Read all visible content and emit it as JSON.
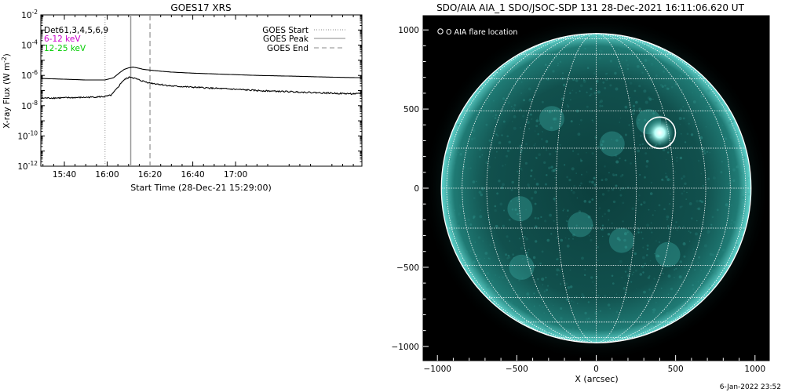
{
  "chart_data": [
    {
      "type": "line",
      "title": "GOES17 XRS",
      "xlabel": "Start Time (28-Dec-21 15:29:00)",
      "ylabel": "X-ray Flux (W m",
      "ylabel_sup": "-2",
      "ylabel_end": ")",
      "y_scale": "log",
      "ylim_exp": [
        -12,
        -2
      ],
      "xlim": [
        "15:29",
        "17:59"
      ],
      "x_ticks": [
        "15:40",
        "16:00",
        "16:20",
        "16:40",
        "17:00"
      ],
      "y_ticks": [
        {
          "base": "10",
          "exp": "-2"
        },
        {
          "base": "10",
          "exp": "-4"
        },
        {
          "base": "10",
          "exp": "-6"
        },
        {
          "base": "10",
          "exp": "-8"
        },
        {
          "base": "10",
          "exp": "-10"
        },
        {
          "base": "10",
          "exp": "-12"
        }
      ],
      "legend_left": [
        {
          "label": "Det61,3,4,5,6,9",
          "color": "#000000"
        },
        {
          "label": "6-12 keV",
          "color": "#cc00cc"
        },
        {
          "label": "12-25 keV",
          "color": "#00cc00"
        }
      ],
      "legend_right": [
        {
          "label": "GOES Start",
          "style": "dotted"
        },
        {
          "label": "GOES Peak",
          "style": "solid"
        },
        {
          "label": "GOES End",
          "style": "dashed"
        }
      ],
      "events": {
        "start": "15:59",
        "peak": "16:11",
        "end": "16:20"
      },
      "series": [
        {
          "channel": "long",
          "color": "#000000",
          "x": [
            "15:29",
            "15:40",
            "15:50",
            "15:59",
            "16:03",
            "16:06",
            "16:08",
            "16:10",
            "16:12",
            "16:14",
            "16:17",
            "16:20",
            "16:25",
            "16:30",
            "16:40",
            "16:50",
            "17:00",
            "17:10",
            "17:20",
            "17:30",
            "17:40",
            "17:50",
            "17:59"
          ],
          "log_flux": [
            -6.2,
            -6.25,
            -6.3,
            -6.3,
            -6.15,
            -5.8,
            -5.6,
            -5.5,
            -5.45,
            -5.5,
            -5.6,
            -5.65,
            -5.72,
            -5.78,
            -5.85,
            -5.9,
            -5.95,
            -6.0,
            -6.03,
            -6.06,
            -6.1,
            -6.13,
            -6.15
          ]
        },
        {
          "channel": "short",
          "color": "#000000",
          "x": [
            "15:29",
            "15:40",
            "15:50",
            "15:59",
            "16:02",
            "16:05",
            "16:07",
            "16:09",
            "16:11",
            "16:13",
            "16:16",
            "16:20",
            "16:25",
            "16:30",
            "16:40",
            "16:50",
            "17:00",
            "17:10",
            "17:20",
            "17:30",
            "17:40",
            "17:50",
            "17:59"
          ],
          "log_flux": [
            -7.5,
            -7.48,
            -7.45,
            -7.4,
            -7.3,
            -6.8,
            -6.4,
            -6.2,
            -6.1,
            -6.2,
            -6.35,
            -6.5,
            -6.6,
            -6.7,
            -6.78,
            -6.85,
            -6.92,
            -7.0,
            -7.05,
            -7.1,
            -7.15,
            -7.2,
            -7.22
          ]
        }
      ]
    },
    {
      "type": "image",
      "title": "SDO/AIA AIA_1 SDO/JSOC-SDP 131 28-Dec-2021 16:11:06.620 UT",
      "xlabel": "X (arcsec)",
      "ylabel": "",
      "xlim": [
        -1090,
        1090
      ],
      "ylim": [
        -1090,
        1090
      ],
      "x_ticks": [
        "−1000",
        "−500",
        "0",
        "500",
        "1000"
      ],
      "y_ticks": [
        "1000",
        "500",
        "0",
        "−500",
        "−1000"
      ],
      "solar_radius_arcsec": 975,
      "grid_spacing_deg": 15,
      "flare_location_arcsec": [
        400,
        350
      ],
      "legend": "O AIA flare location",
      "colors": {
        "disk": "#0f4a47",
        "limb": "#5fd3cc",
        "grid": "#ffffff",
        "background": "#000000"
      }
    }
  ],
  "footer": {
    "timestamp": "6-Jan-2022 23:52"
  }
}
